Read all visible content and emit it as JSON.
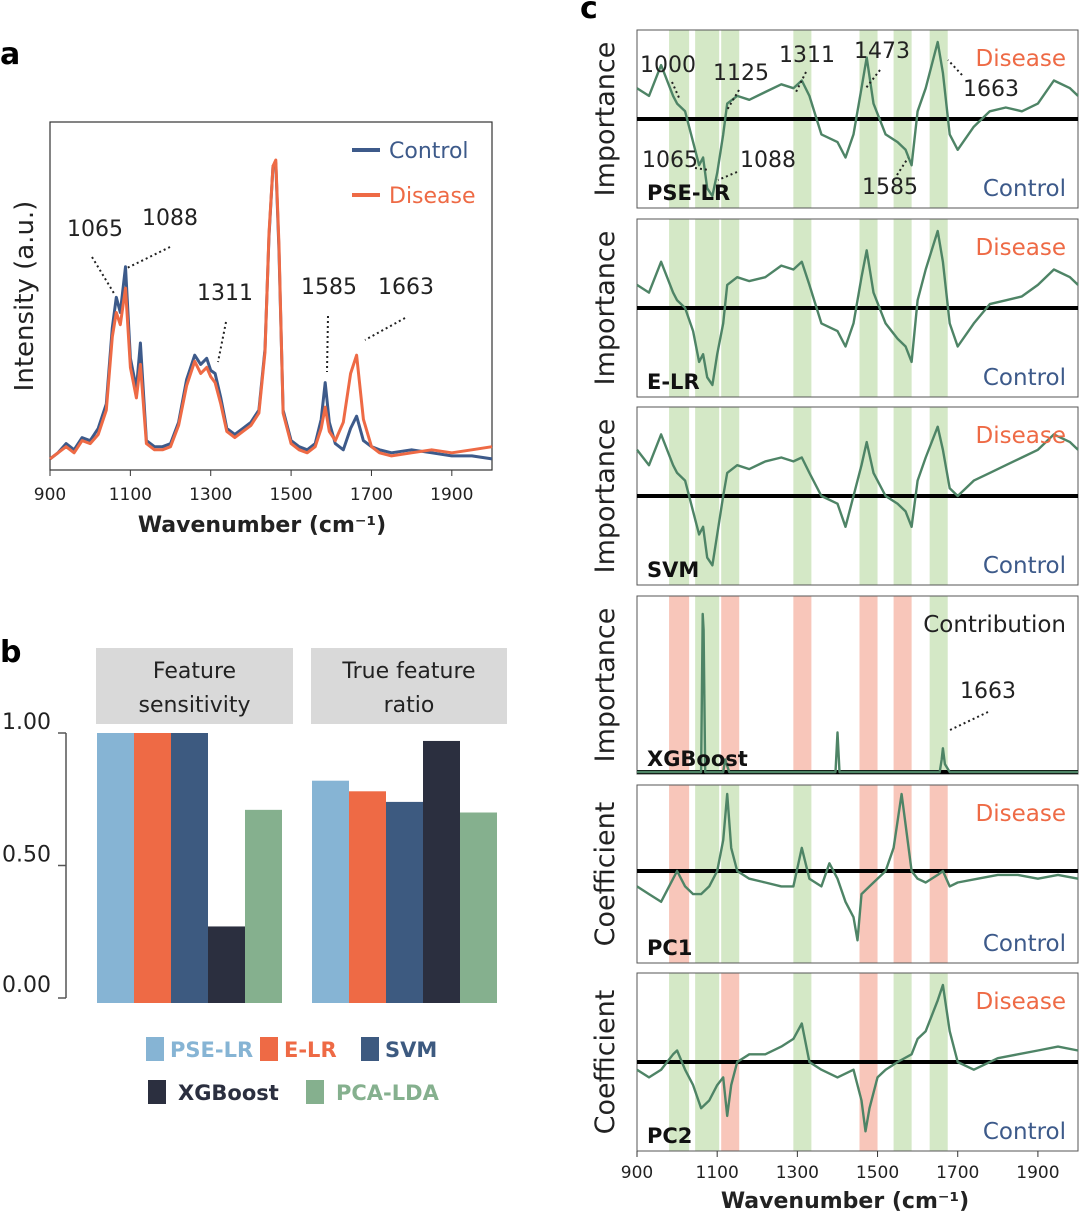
{
  "panel_labels": [
    "a",
    "b",
    "c"
  ],
  "colors": {
    "control": "#3d5a8a",
    "disease": "#ee6a45",
    "green_line": "#4e8466",
    "green_band": "#cfe5c0",
    "red_band": "#f7c0b2",
    "bar_colors": [
      "#86b4d4",
      "#ee6a45",
      "#3d5a80",
      "#2b2f3f",
      "#85b08e"
    ]
  },
  "chart_data": [
    {
      "id": "a",
      "type": "line",
      "xlabel": "Wavenumber (cm⁻¹)",
      "ylabel": "Intensity (a.u.)",
      "xlim": [
        900,
        2000
      ],
      "xticks": [
        "900",
        "1100",
        "1300",
        "1500",
        "1700",
        "1900"
      ],
      "legend": [
        "Control",
        "Disease"
      ],
      "legend_position": "top-right",
      "series": [
        {
          "name": "Control",
          "x": [
            900,
            920,
            940,
            960,
            980,
            1000,
            1020,
            1040,
            1055,
            1065,
            1075,
            1088,
            1100,
            1115,
            1125,
            1140,
            1160,
            1180,
            1200,
            1220,
            1240,
            1260,
            1275,
            1290,
            1300,
            1311,
            1325,
            1340,
            1360,
            1380,
            1400,
            1420,
            1435,
            1445,
            1455,
            1462,
            1470,
            1480,
            1500,
            1520,
            1540,
            1560,
            1575,
            1585,
            1595,
            1610,
            1630,
            1648,
            1663,
            1680,
            1700,
            1720,
            1750,
            1800,
            1850,
            1900,
            1950,
            2000
          ],
          "y": [
            0.02,
            0.04,
            0.07,
            0.05,
            0.09,
            0.08,
            0.12,
            0.2,
            0.45,
            0.55,
            0.5,
            0.65,
            0.35,
            0.25,
            0.4,
            0.08,
            0.06,
            0.06,
            0.07,
            0.14,
            0.28,
            0.36,
            0.33,
            0.35,
            0.31,
            0.3,
            0.22,
            0.12,
            0.1,
            0.12,
            0.14,
            0.18,
            0.38,
            0.75,
            0.98,
            0.99,
            0.7,
            0.18,
            0.08,
            0.06,
            0.05,
            0.07,
            0.15,
            0.27,
            0.14,
            0.07,
            0.05,
            0.12,
            0.16,
            0.08,
            0.06,
            0.05,
            0.04,
            0.05,
            0.04,
            0.03,
            0.03,
            0.02
          ]
        },
        {
          "name": "Disease",
          "x": [
            900,
            920,
            940,
            960,
            980,
            1000,
            1020,
            1040,
            1055,
            1065,
            1075,
            1088,
            1100,
            1115,
            1125,
            1140,
            1160,
            1180,
            1200,
            1220,
            1240,
            1260,
            1275,
            1290,
            1300,
            1311,
            1325,
            1340,
            1360,
            1380,
            1400,
            1420,
            1435,
            1445,
            1455,
            1462,
            1470,
            1480,
            1500,
            1520,
            1540,
            1560,
            1575,
            1585,
            1595,
            1610,
            1630,
            1648,
            1663,
            1680,
            1700,
            1720,
            1750,
            1800,
            1850,
            1900,
            1950,
            2000
          ],
          "y": [
            0.02,
            0.04,
            0.06,
            0.04,
            0.08,
            0.07,
            0.1,
            0.18,
            0.42,
            0.5,
            0.46,
            0.58,
            0.32,
            0.22,
            0.33,
            0.07,
            0.05,
            0.05,
            0.06,
            0.13,
            0.26,
            0.34,
            0.3,
            0.32,
            0.29,
            0.27,
            0.2,
            0.11,
            0.09,
            0.11,
            0.13,
            0.17,
            0.37,
            0.76,
            0.98,
            1.0,
            0.72,
            0.17,
            0.07,
            0.05,
            0.04,
            0.06,
            0.12,
            0.19,
            0.11,
            0.08,
            0.14,
            0.3,
            0.36,
            0.15,
            0.06,
            0.04,
            0.03,
            0.04,
            0.05,
            0.04,
            0.05,
            0.06
          ]
        }
      ],
      "annotations": [
        {
          "text": "1065",
          "x": 1065
        },
        {
          "text": "1088",
          "x": 1088
        },
        {
          "text": "1311",
          "x": 1311
        },
        {
          "text": "1585",
          "x": 1585
        },
        {
          "text": "1663",
          "x": 1663
        }
      ]
    },
    {
      "id": "b",
      "type": "bar",
      "facets": [
        "Feature sensitivity",
        "True feature ratio"
      ],
      "facet_lines": [
        [
          "Feature",
          "sensitivity"
        ],
        [
          "True feature",
          "ratio"
        ]
      ],
      "categories": [
        "PSE-LR",
        "E-LR",
        "SVM",
        "XGBoost",
        "PCA-LDA"
      ],
      "yticks": [
        "1.00",
        "0.50",
        "0.00"
      ],
      "ylim": [
        0,
        1
      ],
      "series": [
        {
          "name": "Feature sensitivity",
          "values": [
            1.0,
            1.0,
            1.0,
            0.27,
            0.71
          ]
        },
        {
          "name": "True feature ratio",
          "values": [
            0.82,
            0.78,
            0.74,
            0.97,
            0.7
          ]
        }
      ],
      "legend": [
        "PSE-LR",
        "E-LR",
        "SVM",
        "XGBoost",
        "PCA-LDA"
      ]
    },
    {
      "id": "c",
      "type": "line",
      "xlabel": "Wavenumber (cm⁻¹)",
      "xlim": [
        900,
        2000
      ],
      "xticks": [
        "900",
        "1100",
        "1300",
        "1500",
        "1700",
        "1900"
      ],
      "top_label": "Disease",
      "bottom_label": "Control",
      "bands": [
        [
          980,
          1030
        ],
        [
          1045,
          1105
        ],
        [
          1110,
          1155
        ],
        [
          1290,
          1335
        ],
        [
          1455,
          1500
        ],
        [
          1540,
          1585
        ],
        [
          1630,
          1675
        ]
      ],
      "panels": [
        {
          "name": "PSE-LR",
          "ylabel": "Importance",
          "band_colors": [
            "g",
            "g",
            "g",
            "g",
            "g",
            "g",
            "g"
          ],
          "x": [
            900,
            930,
            960,
            990,
            1000,
            1020,
            1040,
            1055,
            1065,
            1075,
            1088,
            1100,
            1115,
            1125,
            1150,
            1180,
            1220,
            1260,
            1290,
            1311,
            1330,
            1360,
            1400,
            1420,
            1440,
            1460,
            1473,
            1490,
            1520,
            1550,
            1570,
            1585,
            1600,
            1620,
            1650,
            1663,
            1680,
            1700,
            1740,
            1780,
            1820,
            1860,
            1900,
            1940,
            1980,
            2000
          ],
          "y": [
            0.4,
            0.3,
            0.7,
            0.3,
            0.2,
            0.1,
            -0.3,
            -0.6,
            -0.5,
            -0.9,
            -1.0,
            -0.7,
            -0.2,
            0.2,
            0.3,
            0.25,
            0.35,
            0.45,
            0.4,
            0.5,
            0.3,
            -0.2,
            -0.3,
            -0.5,
            -0.2,
            0.4,
            0.8,
            0.2,
            -0.2,
            -0.3,
            -0.4,
            -0.6,
            0.1,
            0.4,
            1.0,
            0.6,
            -0.2,
            -0.4,
            -0.1,
            0.1,
            0.15,
            0.1,
            0.2,
            0.5,
            0.4,
            0.3
          ]
        },
        {
          "name": "E-LR",
          "ylabel": "Importance",
          "band_colors": [
            "g",
            "g",
            "g",
            "g",
            "g",
            "g",
            "g"
          ],
          "x": [
            900,
            930,
            960,
            990,
            1000,
            1020,
            1040,
            1055,
            1065,
            1075,
            1088,
            1100,
            1115,
            1125,
            1150,
            1180,
            1220,
            1260,
            1290,
            1311,
            1330,
            1360,
            1400,
            1420,
            1440,
            1460,
            1473,
            1490,
            1520,
            1550,
            1570,
            1585,
            1600,
            1620,
            1650,
            1663,
            1680,
            1700,
            1740,
            1780,
            1820,
            1860,
            1900,
            1940,
            1980,
            2000
          ],
          "y": [
            0.3,
            0.2,
            0.6,
            0.2,
            0.1,
            0.0,
            -0.3,
            -0.7,
            -0.6,
            -0.9,
            -1.0,
            -0.6,
            -0.2,
            0.3,
            0.4,
            0.35,
            0.4,
            0.55,
            0.5,
            0.6,
            0.3,
            -0.2,
            -0.3,
            -0.5,
            -0.2,
            0.4,
            0.75,
            0.2,
            -0.2,
            -0.4,
            -0.5,
            -0.7,
            0.1,
            0.5,
            1.0,
            0.6,
            -0.2,
            -0.5,
            -0.2,
            0.05,
            0.1,
            0.15,
            0.3,
            0.5,
            0.4,
            0.3
          ]
        },
        {
          "name": "SVM",
          "ylabel": "Importance",
          "band_colors": [
            "g",
            "g",
            "g",
            "g",
            "g",
            "g",
            "g"
          ],
          "x": [
            900,
            930,
            960,
            990,
            1000,
            1020,
            1040,
            1055,
            1065,
            1075,
            1088,
            1100,
            1115,
            1125,
            1150,
            1180,
            1220,
            1260,
            1290,
            1311,
            1330,
            1360,
            1400,
            1420,
            1440,
            1460,
            1473,
            1490,
            1520,
            1550,
            1570,
            1585,
            1600,
            1620,
            1650,
            1663,
            1680,
            1700,
            1740,
            1780,
            1820,
            1860,
            1900,
            1940,
            1980,
            2000
          ],
          "y": [
            0.6,
            0.4,
            0.8,
            0.4,
            0.3,
            0.2,
            -0.2,
            -0.5,
            -0.4,
            -0.8,
            -0.9,
            -0.5,
            0.0,
            0.3,
            0.4,
            0.35,
            0.45,
            0.5,
            0.45,
            0.5,
            0.3,
            0.0,
            -0.1,
            -0.4,
            0.0,
            0.4,
            0.7,
            0.3,
            0.0,
            -0.1,
            -0.2,
            -0.4,
            0.2,
            0.5,
            0.9,
            0.6,
            0.1,
            0.0,
            0.2,
            0.3,
            0.4,
            0.5,
            0.6,
            0.8,
            0.7,
            0.6
          ]
        },
        {
          "name": "XGBoost",
          "ylabel": "Importance",
          "corner_label": "Contribution",
          "band_colors": [
            "r",
            "g",
            "r",
            "r",
            "r",
            "r",
            "g"
          ],
          "x": [
            900,
            1000,
            1060,
            1064,
            1066,
            1070,
            1080,
            1115,
            1120,
            1125,
            1130,
            1300,
            1395,
            1400,
            1405,
            1440,
            1480,
            1600,
            1655,
            1660,
            1663,
            1668,
            1680,
            1800,
            1900,
            2000
          ],
          "y": [
            0,
            0,
            0,
            1.0,
            0.9,
            0,
            0,
            0,
            0.08,
            0.04,
            0,
            0,
            0,
            0.25,
            0,
            0,
            0,
            0,
            0,
            0.08,
            0.15,
            0.05,
            0,
            0,
            0,
            0
          ]
        },
        {
          "name": "PC1",
          "ylabel": "Coefficient",
          "band_colors": [
            "r",
            "g",
            "g",
            "g",
            "r",
            "r",
            "r"
          ],
          "x": [
            900,
            930,
            960,
            990,
            1000,
            1020,
            1040,
            1060,
            1080,
            1100,
            1115,
            1125,
            1135,
            1150,
            1180,
            1220,
            1260,
            1290,
            1311,
            1330,
            1360,
            1380,
            1400,
            1420,
            1440,
            1450,
            1460,
            1480,
            1500,
            1520,
            1540,
            1560,
            1575,
            1585,
            1600,
            1620,
            1650,
            1663,
            1680,
            1700,
            1750,
            1800,
            1850,
            1900,
            1950,
            2000
          ],
          "y": [
            -0.2,
            -0.3,
            -0.4,
            -0.1,
            0.0,
            -0.2,
            -0.3,
            -0.3,
            -0.2,
            0.0,
            0.4,
            1.0,
            0.3,
            0.0,
            -0.1,
            -0.15,
            -0.2,
            -0.2,
            0.3,
            -0.1,
            -0.2,
            0.1,
            -0.1,
            -0.4,
            -0.6,
            -0.9,
            -0.3,
            -0.2,
            -0.1,
            0.0,
            0.3,
            1.0,
            0.4,
            0.0,
            -0.1,
            -0.15,
            -0.05,
            0.0,
            -0.2,
            -0.15,
            -0.1,
            -0.05,
            -0.05,
            -0.1,
            -0.05,
            -0.1
          ]
        },
        {
          "name": "PC2",
          "ylabel": "Coefficient",
          "band_colors": [
            "g",
            "g",
            "r",
            "g",
            "r",
            "g",
            "g"
          ],
          "x": [
            900,
            930,
            960,
            990,
            1000,
            1020,
            1040,
            1060,
            1080,
            1100,
            1115,
            1125,
            1135,
            1150,
            1180,
            1220,
            1260,
            1290,
            1311,
            1330,
            1360,
            1400,
            1440,
            1460,
            1470,
            1480,
            1500,
            1520,
            1550,
            1585,
            1600,
            1620,
            1650,
            1663,
            1680,
            1700,
            1740,
            1800,
            1850,
            1900,
            1950,
            2000
          ],
          "y": [
            -0.1,
            -0.2,
            -0.1,
            0.1,
            0.15,
            -0.1,
            -0.3,
            -0.6,
            -0.5,
            -0.3,
            -0.2,
            -0.7,
            -0.3,
            0.0,
            0.1,
            0.1,
            0.2,
            0.3,
            0.5,
            0.0,
            -0.1,
            -0.2,
            -0.1,
            -0.5,
            -0.9,
            -0.6,
            -0.2,
            -0.1,
            0.0,
            0.1,
            0.3,
            0.4,
            0.8,
            1.0,
            0.4,
            0.0,
            -0.1,
            0.05,
            0.1,
            0.15,
            0.2,
            0.15
          ]
        }
      ],
      "annotations": [
        {
          "text": "1000",
          "x": 1000
        },
        {
          "text": "1125",
          "x": 1125
        },
        {
          "text": "1311",
          "x": 1311
        },
        {
          "text": "1473",
          "x": 1473
        },
        {
          "text": "1663",
          "x": 1663
        },
        {
          "text": "1065",
          "x": 1065
        },
        {
          "text": "1088",
          "x": 1088
        },
        {
          "text": "1585",
          "x": 1585
        },
        {
          "text": "1663",
          "x": 1663
        }
      ]
    }
  ]
}
